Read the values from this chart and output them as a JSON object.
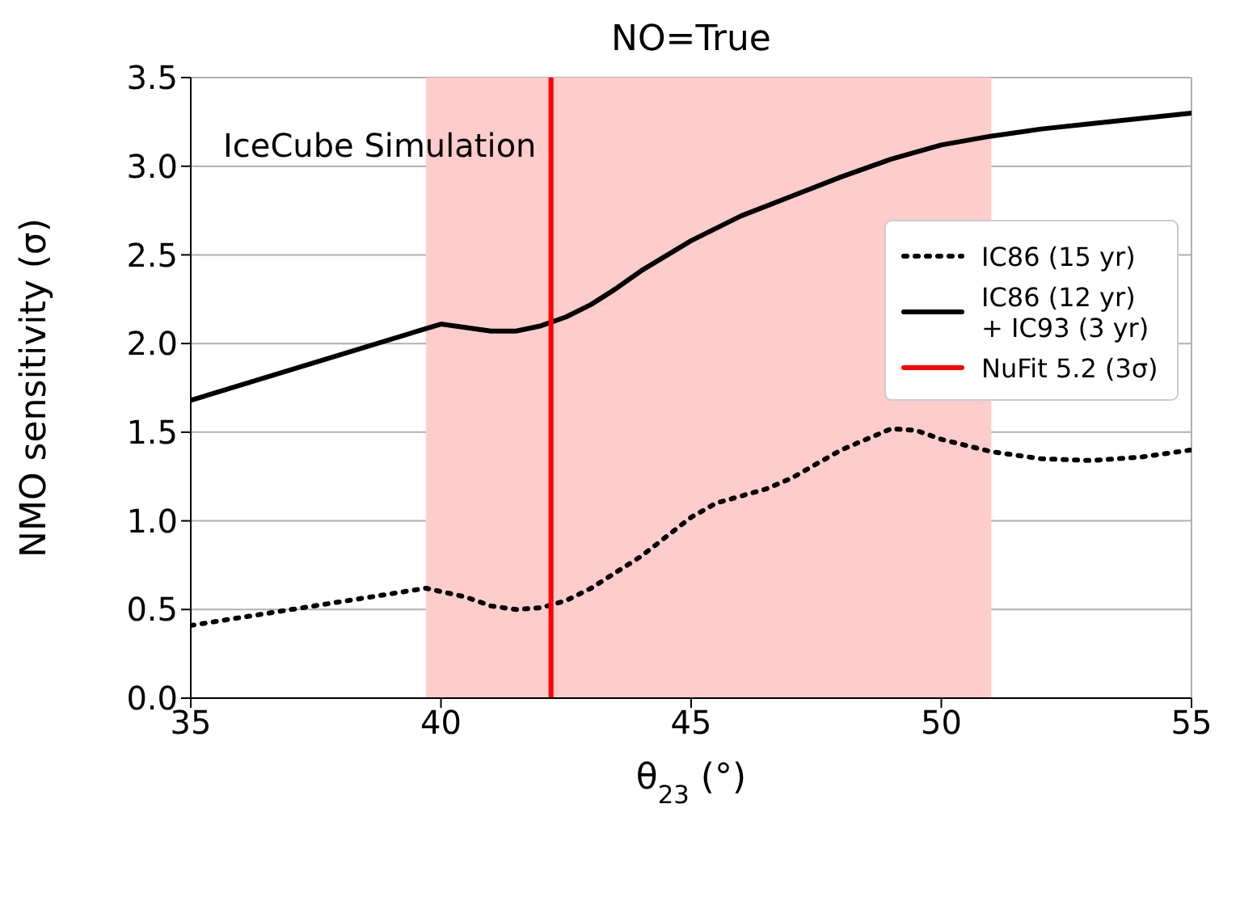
{
  "chart_data": {
    "type": "line",
    "title": "NO=True",
    "xlabel": "θ$_{23}$ (°)",
    "ylabel": "NMO sensitivity (σ)",
    "annotations": [
      "IceCube Simulation"
    ],
    "series": [
      {
        "name": "IC86 (15 yr)",
        "color": "#000000",
        "line_style": "dotted",
        "x": [
          35,
          39.7,
          40.5,
          41,
          41.5,
          42,
          42.5,
          43,
          44,
          45,
          45.5,
          46.5,
          47,
          48,
          49,
          49.5,
          50,
          51,
          52,
          53,
          54,
          55
        ],
        "values": [
          0.41,
          0.62,
          0.57,
          0.52,
          0.5,
          0.51,
          0.55,
          0.62,
          0.8,
          1.02,
          1.1,
          1.18,
          1.24,
          1.4,
          1.52,
          1.51,
          1.46,
          1.39,
          1.35,
          1.34,
          1.36,
          1.4
        ]
      },
      {
        "name": "IC86 (12 yr)\n+ IC93 (3 yr)",
        "color": "#000000",
        "line_style": "solid",
        "x": [
          35,
          40,
          41,
          41.5,
          42,
          42.5,
          43,
          43.5,
          44,
          45,
          46,
          47,
          48,
          49,
          50,
          51,
          52,
          53,
          55
        ],
        "values": [
          1.68,
          2.11,
          2.07,
          2.07,
          2.1,
          2.15,
          2.22,
          2.31,
          2.41,
          2.58,
          2.72,
          2.83,
          2.94,
          3.04,
          3.12,
          3.17,
          3.21,
          3.24,
          3.3
        ]
      },
      {
        "type": "line",
        "name": "NuFit 5.2 (3σ)",
        "color": "#ff0000",
        "line_style": "solid",
        "x": [
          42.2,
          42.2
        ],
        "values": [
          0,
          3.5
        ]
      }
    ],
    "bands": [
      {
        "axis": "x",
        "from": 39.7,
        "to": 51.0,
        "color": "#ffcccc"
      }
    ],
    "xlim": [
      35,
      55
    ],
    "xticks": [
      35,
      40,
      45,
      50,
      55
    ],
    "ylim": [
      0,
      3.5
    ],
    "yticks": [
      {
        "value": 0,
        "label": "0.0"
      },
      0.5,
      {
        "value": 1,
        "label": "1.0"
      },
      1.5,
      {
        "value": 2,
        "label": "2.0"
      },
      2.5,
      {
        "value": 3,
        "label": "3.0"
      },
      3.5
    ],
    "grid": true,
    "legend": "right",
    "marker": "none"
  }
}
